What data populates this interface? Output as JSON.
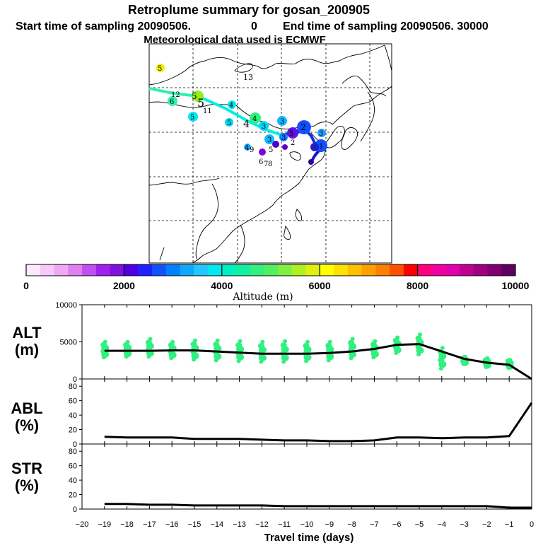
{
  "title": "Retroplume summary for gosan_200905",
  "subtitle_start_label": "Start time of sampling 20090506.",
  "subtitle_start_time": "0",
  "subtitle_end_label": "End time of sampling 20090506. 30000",
  "met_label": "Meteorological data used is ECMWF",
  "colorbar": {
    "label": "Altitude (m)",
    "ticks": [
      "0",
      "2000",
      "4000",
      "6000",
      "8000",
      "10000"
    ],
    "tick_values": [
      0,
      2000,
      4000,
      6000,
      8000,
      10000
    ],
    "colors": [
      "#ffe8ff",
      "#f8c8f8",
      "#f0a8f0",
      "#e080f0",
      "#c050f0",
      "#a020f0",
      "#8010e0",
      "#5000e0",
      "#2020ff",
      "#1050ff",
      "#0080ff",
      "#10a8ff",
      "#20c8ff",
      "#00e8f0",
      "#00f0c0",
      "#10f0a0",
      "#30f080",
      "#50f060",
      "#80f040",
      "#b0f020",
      "#e0f010",
      "#ffff00",
      "#ffe000",
      "#ffc000",
      "#ffa000",
      "#ff8000",
      "#ff5000",
      "#ff0000",
      "#ff0080",
      "#f000a0",
      "#e000b0",
      "#c00090",
      "#a00080",
      "#800070",
      "#600060"
    ]
  },
  "map": {
    "labels": [
      "5",
      "13",
      "12",
      "5",
      "5",
      "6",
      "11",
      "4",
      "5",
      "4",
      "5",
      "4",
      "3",
      "3",
      "2",
      "3",
      "3",
      "4",
      "5",
      "5",
      "2",
      "1",
      "0",
      "3",
      "9",
      "6",
      "7",
      "8"
    ],
    "plume_colors": {
      "cyan": "#00f0c0",
      "green": "#90f020",
      "yellow": "#f0f000",
      "blue": "#1050ff",
      "dark_blue": "#1010c0",
      "purple": "#8000e0"
    }
  },
  "chart_data": [
    {
      "type": "line",
      "panel": "ALT",
      "ylabel": "ALT",
      "yunit": "(m)",
      "ylim": [
        0,
        10000
      ],
      "yticks": [
        "0",
        "5000",
        "10000"
      ],
      "x": [
        -19,
        -18,
        -17,
        -16,
        -15,
        -14,
        -13,
        -12,
        -11,
        -10,
        -9,
        -8,
        -7,
        -6,
        -5,
        -4,
        -3,
        -2,
        -1,
        0
      ],
      "values": [
        3800,
        3800,
        3800,
        3850,
        3850,
        3700,
        3550,
        3400,
        3400,
        3400,
        3500,
        3700,
        4050,
        4600,
        4700,
        3700,
        2700,
        2200,
        1900,
        0
      ],
      "cluster_tops": [
        5000,
        5000,
        5400,
        5000,
        5200,
        5200,
        5100,
        5000,
        5100,
        5000,
        5000,
        5400,
        5100,
        5600,
        6000,
        4200,
        3000,
        2800,
        2600
      ],
      "cluster_bottoms": [
        2900,
        3000,
        3000,
        2800,
        2600,
        2500,
        2400,
        2300,
        2300,
        2400,
        2500,
        2800,
        2900,
        3500,
        3300,
        1400,
        2000,
        1600,
        1500
      ]
    },
    {
      "type": "line",
      "panel": "ABL",
      "ylabel": "ABL",
      "yunit": "(%)",
      "ylim": [
        0,
        90
      ],
      "yticks": [
        "0",
        "20",
        "40",
        "60",
        "80"
      ],
      "x": [
        -19,
        -18,
        -17,
        -16,
        -15,
        -14,
        -13,
        -12,
        -11,
        -10,
        -9,
        -8,
        -7,
        -6,
        -5,
        -4,
        -3,
        -2,
        -1,
        0
      ],
      "values": [
        10,
        9,
        9,
        9,
        7,
        7,
        7,
        6,
        5,
        5,
        4,
        4,
        5,
        9,
        9,
        8,
        9,
        9,
        11,
        57
      ]
    },
    {
      "type": "line",
      "panel": "STR",
      "ylabel": "STR",
      "yunit": "(%)",
      "xlabel": "Travel time (days)",
      "ylim": [
        0,
        90
      ],
      "yticks": [
        "0",
        "20",
        "40",
        "60",
        "80"
      ],
      "xlim": [
        -20,
        0
      ],
      "xticks": [
        "−20",
        "−19",
        "−18",
        "−17",
        "−16",
        "−15",
        "−14",
        "−13",
        "−12",
        "−11",
        "−10",
        "−9",
        "−8",
        "−7",
        "−6",
        "−5",
        "−4",
        "−3",
        "−2",
        "−1",
        "0"
      ],
      "x": [
        -19,
        -18,
        -17,
        -16,
        -15,
        -14,
        -13,
        -12,
        -11,
        -10,
        -9,
        -8,
        -7,
        -6,
        -5,
        -4,
        -3,
        -2,
        -1,
        0
      ],
      "values": [
        7,
        7,
        6,
        6,
        5,
        5,
        5,
        5,
        4,
        4,
        4,
        4,
        4,
        4,
        4,
        4,
        4,
        4,
        2,
        2
      ]
    }
  ]
}
